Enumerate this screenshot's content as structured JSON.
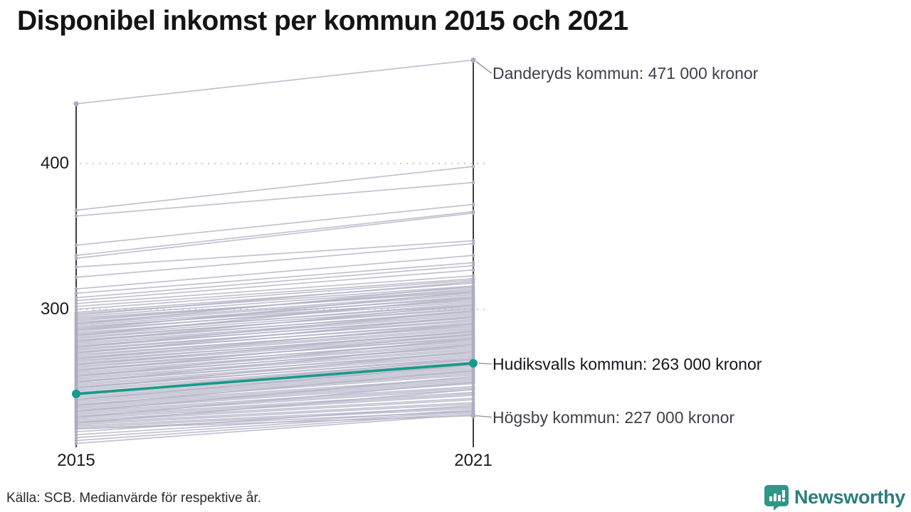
{
  "title": "Disponibel inkomst per kommun 2015 och 2021",
  "source": "Källa: SCB. Medianvärde för respektive år.",
  "logo": {
    "name": "Newsworthy"
  },
  "colors": {
    "line_gray": "#b3b1c5",
    "dot_gray": "#aeacbf",
    "highlight": "#189a88",
    "axis": "#0e0e0e",
    "grid": "#cccccc",
    "leader": "#8d8d98",
    "annotation_text": "#3e3e49",
    "highlight_text": "#15151c",
    "logo_green": "#2f9688",
    "logo_text": "#2b7e7d"
  },
  "chart_data": {
    "type": "line",
    "subtype": "slopegraph",
    "title": "Disponibel inkomst per kommun 2015 och 2021",
    "x": [
      2015,
      2021
    ],
    "x_labels": [
      "2015",
      "2021"
    ],
    "yticks": [
      400,
      300
    ],
    "ytick_labels": [
      "400",
      "300"
    ],
    "ylim": [
      206,
      480
    ],
    "grid": "dotted-horizontal",
    "unit_note": "kronor (tusental på axeln)",
    "highlight_series": {
      "name": "Hudiksvalls kommun",
      "values": [
        242,
        263
      ],
      "label": "Hudiksvalls kommun: 263 000 kronor"
    },
    "annotations": [
      {
        "id": "danderyd",
        "name": "Danderyds kommun",
        "value_2015": 441,
        "value_2021": 471,
        "label": "Danderyds kommun: 471 000 kronor",
        "highlight": false
      },
      {
        "id": "hudiksvall",
        "name": "Hudiksvalls kommun",
        "value_2015": 242,
        "value_2021": 263,
        "label": "Hudiksvalls kommun: 263 000 kronor",
        "highlight": true
      },
      {
        "id": "hogsby",
        "name": "Högsby kommun",
        "value_2015": 218,
        "value_2021": 227,
        "label": "Högsby kommun: 227 000 kronor",
        "highlight": false
      }
    ],
    "background_series": [
      [
        441,
        471
      ],
      [
        368,
        398
      ],
      [
        364,
        387
      ],
      [
        344,
        372
      ],
      [
        337,
        367
      ],
      [
        335,
        366
      ],
      [
        329,
        347
      ],
      [
        322,
        345
      ],
      [
        314,
        337
      ],
      [
        311,
        332
      ],
      [
        308,
        330
      ],
      [
        306,
        327
      ],
      [
        304,
        323
      ],
      [
        302,
        321
      ],
      [
        300,
        320
      ],
      [
        298,
        318
      ],
      [
        297,
        316
      ],
      [
        296,
        319
      ],
      [
        295,
        315
      ],
      [
        294,
        312
      ],
      [
        293,
        313
      ],
      [
        292,
        314
      ],
      [
        291,
        311
      ],
      [
        290,
        310
      ],
      [
        289,
        308
      ],
      [
        288,
        306
      ],
      [
        287,
        309
      ],
      [
        286,
        305
      ],
      [
        285,
        307
      ],
      [
        284,
        303
      ],
      [
        283,
        304
      ],
      [
        282,
        302
      ],
      [
        281,
        300
      ],
      [
        280,
        301
      ],
      [
        279,
        298
      ],
      [
        278,
        299
      ],
      [
        277,
        297
      ],
      [
        276,
        296
      ],
      [
        275,
        294
      ],
      [
        274,
        295
      ],
      [
        273,
        292
      ],
      [
        272,
        293
      ],
      [
        271,
        290
      ],
      [
        270,
        291
      ],
      [
        269,
        288
      ],
      [
        268,
        289
      ],
      [
        267,
        287
      ],
      [
        266,
        286
      ],
      [
        265,
        284
      ],
      [
        264,
        285
      ],
      [
        263,
        283
      ],
      [
        262,
        282
      ],
      [
        261,
        280
      ],
      [
        260,
        281
      ],
      [
        259,
        278
      ],
      [
        258,
        279
      ],
      [
        257,
        277
      ],
      [
        256,
        276
      ],
      [
        255,
        274
      ],
      [
        254,
        275
      ],
      [
        253,
        273
      ],
      [
        252,
        272
      ],
      [
        251,
        270
      ],
      [
        250,
        271
      ],
      [
        249,
        269
      ],
      [
        248,
        268
      ],
      [
        247,
        266
      ],
      [
        246,
        267
      ],
      [
        245,
        265
      ],
      [
        244,
        264
      ],
      [
        243,
        262
      ],
      [
        242,
        261
      ],
      [
        241,
        260
      ],
      [
        240,
        259
      ],
      [
        239,
        258
      ],
      [
        238,
        257
      ],
      [
        237,
        256
      ],
      [
        236,
        255
      ],
      [
        235,
        253
      ],
      [
        234,
        252
      ],
      [
        233,
        251
      ],
      [
        232,
        250
      ],
      [
        231,
        249
      ],
      [
        230,
        247
      ],
      [
        229,
        246
      ],
      [
        228,
        245
      ],
      [
        227,
        243
      ],
      [
        226,
        242
      ],
      [
        225,
        241
      ],
      [
        224,
        239
      ],
      [
        223,
        238
      ],
      [
        222,
        236
      ],
      [
        221,
        235
      ],
      [
        220,
        233
      ],
      [
        219,
        232
      ],
      [
        218,
        230
      ],
      [
        216,
        234
      ],
      [
        214,
        231
      ],
      [
        212,
        230
      ],
      [
        210,
        229
      ],
      [
        208,
        228
      ],
      [
        218,
        227
      ],
      [
        262,
        285
      ],
      [
        258,
        283
      ],
      [
        266,
        290
      ],
      [
        270,
        295
      ],
      [
        274,
        299
      ],
      [
        278,
        303
      ],
      [
        250,
        276
      ],
      [
        246,
        271
      ],
      [
        242,
        266
      ],
      [
        238,
        262
      ],
      [
        234,
        258
      ],
      [
        230,
        254
      ],
      [
        226,
        250
      ],
      [
        222,
        245
      ],
      [
        254,
        280
      ],
      [
        286,
        312
      ],
      [
        290,
        316
      ],
      [
        282,
        308
      ]
    ]
  }
}
